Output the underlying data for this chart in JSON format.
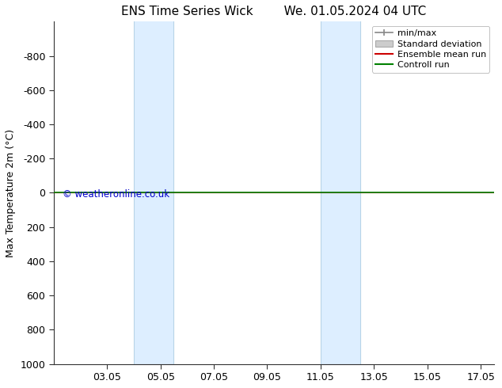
{
  "title": "ENS Time Series Wick        We. 01.05.2024 04 UTC",
  "ylabel": "Max Temperature 2m (°C)",
  "ylim_top": 1000,
  "ylim_bottom": -1000,
  "yticks": [
    -800,
    -600,
    -400,
    -200,
    0,
    200,
    400,
    600,
    800,
    1000
  ],
  "xlim_start": 1.0,
  "xlim_end": 17.5,
  "xtick_labels": [
    "03.05",
    "05.05",
    "07.05",
    "09.05",
    "11.05",
    "13.05",
    "15.05",
    "17.05"
  ],
  "xtick_positions": [
    3,
    5,
    7,
    9,
    11,
    13,
    15,
    17
  ],
  "blue_bands": [
    {
      "x_start": 4.0,
      "x_end": 5.5
    },
    {
      "x_start": 11.0,
      "x_end": 12.5
    }
  ],
  "band_color": "#ddeeff",
  "band_edge_color": "#b8d4e8",
  "control_run_color": "#008000",
  "ensemble_mean_color": "#cc0000",
  "minmax_color": "#888888",
  "stddev_color": "#cccccc",
  "watermark": "© weatheronline.co.uk",
  "watermark_color": "#0000cc",
  "background_color": "#ffffff",
  "legend_labels": [
    "min/max",
    "Standard deviation",
    "Ensemble mean run",
    "Controll run"
  ],
  "legend_colors": [
    "#888888",
    "#cccccc",
    "#cc0000",
    "#008000"
  ],
  "font_size": 9,
  "title_font_size": 11
}
